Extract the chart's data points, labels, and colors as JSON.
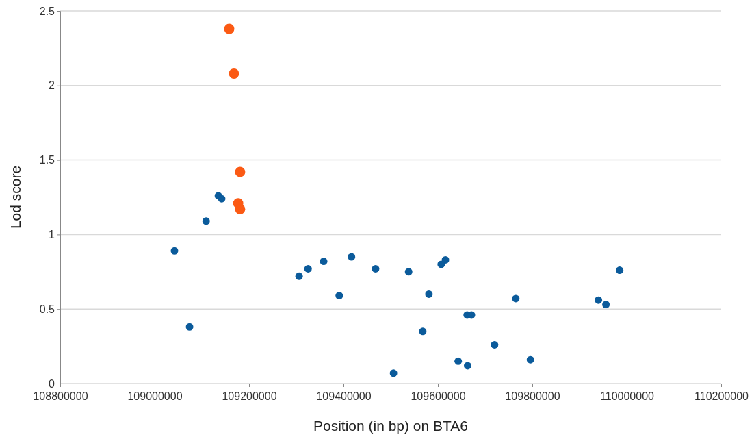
{
  "chart_data": {
    "type": "scatter",
    "xlabel": "Position (in bp) on BTA6",
    "ylabel": "Lod score",
    "xlim": [
      108800000,
      110200000
    ],
    "xticks": [
      108800000,
      109000000,
      109200000,
      109400000,
      109600000,
      109800000,
      110000000,
      110200000
    ],
    "ylim": [
      0,
      2.5
    ],
    "yticks": [
      0,
      0.5,
      1,
      1.5,
      2,
      2.5
    ],
    "grid": "y",
    "marker": "circle",
    "series": [
      {
        "color": "#0b5b9b",
        "x": [
          109042000,
          109074000,
          109109000,
          109135000,
          109142000,
          109306000,
          109325000,
          109358000,
          109391000,
          109417000,
          109468000,
          109538000,
          109506000,
          109568000,
          109581000,
          109607000,
          109616000,
          109643000,
          109662000,
          109663000,
          109671000,
          109720000,
          109765000,
          109796000,
          109940000,
          109956000,
          109985000
        ],
        "values": [
          0.89,
          0.38,
          1.09,
          1.26,
          1.24,
          0.72,
          0.77,
          0.82,
          0.59,
          0.85,
          0.77,
          0.75,
          0.07,
          0.35,
          0.6,
          0.8,
          0.83,
          0.15,
          0.46,
          0.12,
          0.46,
          0.26,
          0.57,
          0.16,
          0.56,
          0.53,
          0.76
        ]
      },
      {
        "color": "#fb5a14",
        "x": [
          109158000,
          109168000,
          109181000,
          109177000,
          109181000
        ],
        "values": [
          2.38,
          2.08,
          1.42,
          1.21,
          1.17
        ]
      }
    ]
  }
}
